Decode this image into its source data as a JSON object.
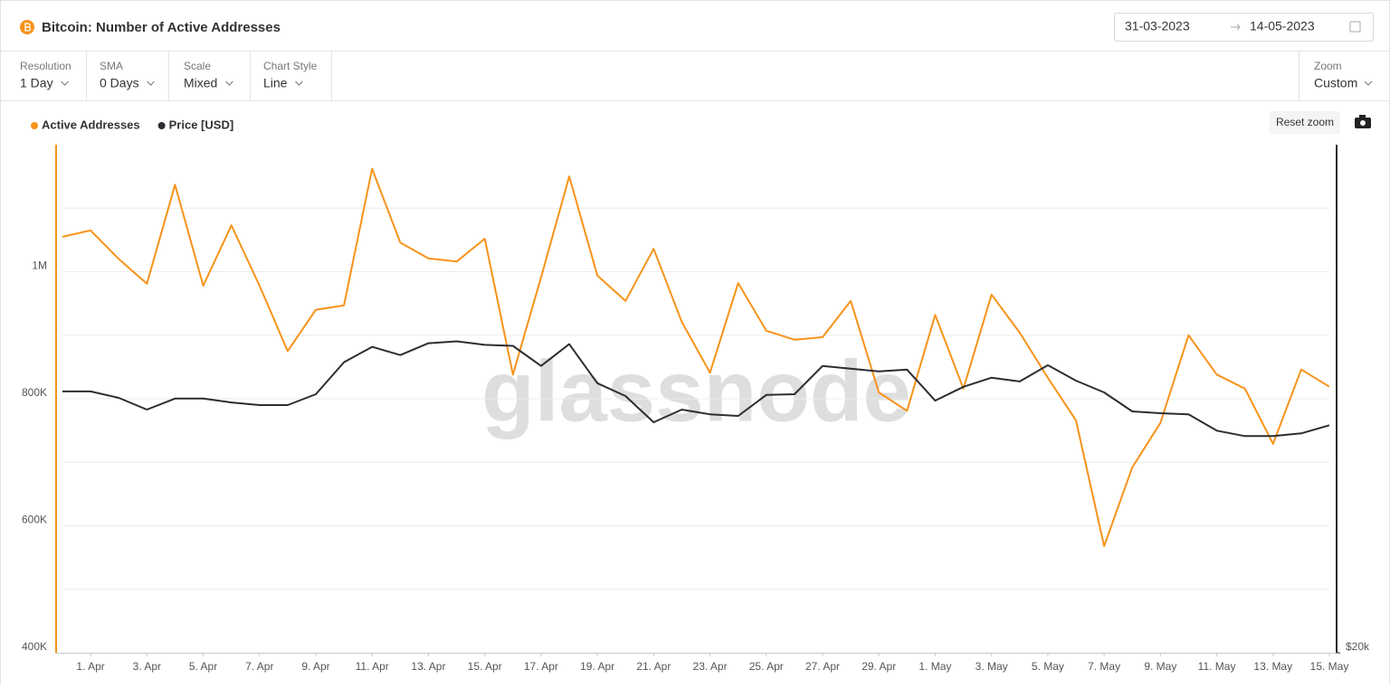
{
  "header": {
    "title": "Bitcoin: Number of Active Addresses",
    "date_from": "31-03-2023",
    "date_to": "14-05-2023"
  },
  "controls": [
    {
      "label": "Resolution",
      "value": "1 Day"
    },
    {
      "label": "SMA",
      "value": "0 Days"
    },
    {
      "label": "Scale",
      "value": "Mixed"
    },
    {
      "label": "Chart Style",
      "value": "Line"
    }
  ],
  "zoom": {
    "label": "Zoom",
    "value": "Custom"
  },
  "reset_zoom": "Reset zoom",
  "chart_data": {
    "type": "line",
    "watermark": "glassnode",
    "x": [
      "2023-03-31",
      "2023-04-01",
      "2023-04-02",
      "2023-04-03",
      "2023-04-04",
      "2023-04-05",
      "2023-04-06",
      "2023-04-07",
      "2023-04-08",
      "2023-04-09",
      "2023-04-10",
      "2023-04-11",
      "2023-04-12",
      "2023-04-13",
      "2023-04-14",
      "2023-04-15",
      "2023-04-16",
      "2023-04-17",
      "2023-04-18",
      "2023-04-19",
      "2023-04-20",
      "2023-04-21",
      "2023-04-22",
      "2023-04-23",
      "2023-04-24",
      "2023-04-25",
      "2023-04-26",
      "2023-04-27",
      "2023-04-28",
      "2023-04-29",
      "2023-04-30",
      "2023-05-01",
      "2023-05-02",
      "2023-05-03",
      "2023-05-04",
      "2023-05-05",
      "2023-05-06",
      "2023-05-07",
      "2023-05-08",
      "2023-05-09",
      "2023-05-10",
      "2023-05-11",
      "2023-05-12",
      "2023-05-13",
      "2023-05-14",
      "2023-05-15"
    ],
    "xlim": [
      "2023-03-31",
      "2023-05-15"
    ],
    "xticks": [
      {
        "value": "2023-04-01",
        "label": "1. Apr"
      },
      {
        "value": "2023-04-03",
        "label": "3. Apr"
      },
      {
        "value": "2023-04-05",
        "label": "5. Apr"
      },
      {
        "value": "2023-04-07",
        "label": "7. Apr"
      },
      {
        "value": "2023-04-09",
        "label": "9. Apr"
      },
      {
        "value": "2023-04-11",
        "label": "11. Apr"
      },
      {
        "value": "2023-04-13",
        "label": "13. Apr"
      },
      {
        "value": "2023-04-15",
        "label": "15. Apr"
      },
      {
        "value": "2023-04-17",
        "label": "17. Apr"
      },
      {
        "value": "2023-04-19",
        "label": "19. Apr"
      },
      {
        "value": "2023-04-21",
        "label": "21. Apr"
      },
      {
        "value": "2023-04-23",
        "label": "23. Apr"
      },
      {
        "value": "2023-04-25",
        "label": "25. Apr"
      },
      {
        "value": "2023-04-27",
        "label": "27. Apr"
      },
      {
        "value": "2023-04-29",
        "label": "29. Apr"
      },
      {
        "value": "2023-05-01",
        "label": "1. May"
      },
      {
        "value": "2023-05-03",
        "label": "3. May"
      },
      {
        "value": "2023-05-05",
        "label": "5. May"
      },
      {
        "value": "2023-05-07",
        "label": "7. May"
      },
      {
        "value": "2023-05-09",
        "label": "9. May"
      },
      {
        "value": "2023-05-11",
        "label": "11. May"
      },
      {
        "value": "2023-05-13",
        "label": "13. May"
      },
      {
        "value": "2023-05-15",
        "label": "15. May"
      }
    ],
    "ylim": [
      400000,
      1200000
    ],
    "yticks": [
      {
        "value": 400000,
        "label": "400K"
      },
      {
        "value": 600000,
        "label": "600K"
      },
      {
        "value": 800000,
        "label": "800K"
      },
      {
        "value": 1000000,
        "label": "1M"
      }
    ],
    "ygrid": [
      500000,
      700000,
      900000,
      1100000
    ],
    "y2lim": [
      20000,
      40000
    ],
    "y2log": true,
    "y2ticks": [
      {
        "value": 20000,
        "label": "$20k"
      }
    ],
    "grid": true,
    "legend": "top-left",
    "series": [
      {
        "name": "Active Addresses",
        "color": "#f7931a",
        "axis": "y",
        "values": [
          1055000,
          1065000,
          1020000,
          981000,
          1137000,
          978000,
          1073000,
          978000,
          875000,
          940000,
          947000,
          1162000,
          1046000,
          1021000,
          1016000,
          1052000,
          838000,
          991000,
          1150000,
          994000,
          954000,
          1036000,
          921000,
          841000,
          982000,
          907000,
          893000,
          897000,
          954000,
          810000,
          781000,
          932000,
          816000,
          964000,
          904000,
          833000,
          766000,
          568000,
          692000,
          762000,
          900000,
          838000,
          816000,
          729000,
          846000,
          819000
        ]
      },
      {
        "name": "Price [USD]",
        "color": "#2b2d33",
        "axis": "y2",
        "values": [
          28570,
          28570,
          28320,
          27870,
          28290,
          28290,
          28140,
          28040,
          28040,
          28460,
          29730,
          30360,
          30020,
          30510,
          30590,
          30440,
          30400,
          29580,
          30470,
          28890,
          28390,
          27390,
          27870,
          27690,
          27630,
          28430,
          28460,
          29580,
          29470,
          29360,
          29430,
          28210,
          28750,
          29110,
          28960,
          29610,
          28990,
          28530,
          27800,
          27730,
          27690,
          27080,
          26880,
          26880,
          26980,
          27280
        ]
      }
    ]
  }
}
